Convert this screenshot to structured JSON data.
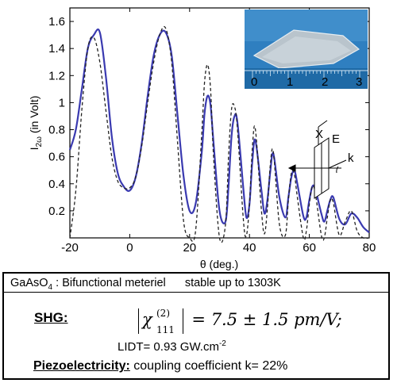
{
  "chart_data": {
    "type": "line",
    "xlabel": "θ (deg.)",
    "ylabel": "I2ω (in Volt)",
    "xlim": [
      -20,
      80
    ],
    "ylim": [
      0,
      1.7
    ],
    "x_ticks": [
      "-20",
      "0",
      "20",
      "40",
      "60",
      "80"
    ],
    "y_ticks": [
      "0.2",
      "0.4",
      "0.6",
      "0.8",
      "1",
      "1.2",
      "1.4",
      "1.6"
    ],
    "grid": false,
    "series": [
      {
        "style": "solid-blue-measured",
        "color": "#3a3ab0",
        "x": [
          -20,
          -18,
          -16,
          -14,
          -12,
          -10,
          -8,
          -6,
          -4,
          -2,
          0,
          2,
          4,
          6,
          8,
          10,
          12,
          14,
          16,
          18,
          20,
          22,
          24,
          25,
          26,
          27,
          28,
          30,
          32,
          33,
          34,
          35,
          36,
          38,
          39,
          40,
          41,
          42,
          44,
          45,
          46,
          47,
          48,
          50,
          52,
          53,
          54,
          55,
          56,
          58,
          59,
          60,
          61,
          62,
          64,
          65,
          66,
          67,
          68,
          70,
          72,
          74,
          76,
          78,
          80
        ],
        "y": [
          0.65,
          0.8,
          1.1,
          1.4,
          1.5,
          1.52,
          1.2,
          0.75,
          0.48,
          0.38,
          0.35,
          0.45,
          0.7,
          1.05,
          1.35,
          1.5,
          1.52,
          1.35,
          0.9,
          0.45,
          0.2,
          0.25,
          0.62,
          0.92,
          1.05,
          0.98,
          0.7,
          0.2,
          0.12,
          0.38,
          0.75,
          0.9,
          0.85,
          0.35,
          0.15,
          0.25,
          0.58,
          0.72,
          0.35,
          0.18,
          0.28,
          0.5,
          0.62,
          0.3,
          0.15,
          0.3,
          0.45,
          0.5,
          0.4,
          0.16,
          0.15,
          0.28,
          0.38,
          0.36,
          0.18,
          0.12,
          0.2,
          0.28,
          0.3,
          0.14,
          0.1,
          0.18,
          0.15,
          0.08,
          0.04
        ]
      },
      {
        "style": "dashed-black-theory",
        "color": "#222222",
        "x": [
          -20,
          -18,
          -16,
          -14,
          -12,
          -10,
          -8,
          -6,
          -4,
          -2,
          0,
          2,
          4,
          6,
          8,
          10,
          12,
          14,
          16,
          18,
          20,
          22,
          24,
          25,
          26,
          27,
          28,
          30,
          32,
          33,
          34,
          35,
          36,
          38,
          39,
          40,
          41,
          42,
          44,
          45,
          46,
          47,
          48,
          50,
          52,
          53,
          54,
          55,
          56,
          58,
          59,
          60,
          61,
          62,
          64,
          65,
          66,
          67,
          68,
          70,
          72,
          74,
          76,
          78,
          80
        ],
        "y": [
          0.0,
          0.35,
          0.95,
          1.4,
          1.48,
          1.3,
          0.95,
          0.6,
          0.42,
          0.37,
          0.37,
          0.45,
          0.68,
          1.0,
          1.3,
          1.5,
          1.55,
          1.3,
          0.7,
          0.12,
          0.0,
          0.05,
          0.75,
          1.15,
          1.28,
          1.1,
          0.6,
          0.0,
          0.1,
          0.6,
          0.95,
          0.97,
          0.8,
          0.12,
          0.02,
          0.25,
          0.68,
          0.8,
          0.2,
          0.03,
          0.22,
          0.55,
          0.63,
          0.1,
          0.02,
          0.28,
          0.48,
          0.47,
          0.3,
          0.0,
          0.05,
          0.25,
          0.38,
          0.33,
          0.02,
          0.0,
          0.15,
          0.28,
          0.26,
          0.02,
          0.12,
          0.2,
          0.05,
          0.0,
          0.0
        ]
      }
    ]
  },
  "inset": {
    "ruler_numbers": [
      "0",
      "1",
      "2",
      "3"
    ],
    "axis_labels": [
      "X",
      "E",
      "k"
    ]
  },
  "info": {
    "material": "GaAsO",
    "material_sub": "4",
    "material_desc": ": Bifunctional  meteriel",
    "stability": "stable up to 1303K",
    "shg_label": "SHG:",
    "chi_symbol": "χ",
    "chi_sup": "(2)",
    "chi_sub": "111",
    "chi_value": "= 7.5 ± 1.5 pm/V;",
    "lidt_label": "LIDT= 0.93 GW.cm",
    "lidt_exp": "-2",
    "piezo_label": "Piezoelectricity:",
    "piezo_text": "coupling coefficient k= 22%"
  }
}
